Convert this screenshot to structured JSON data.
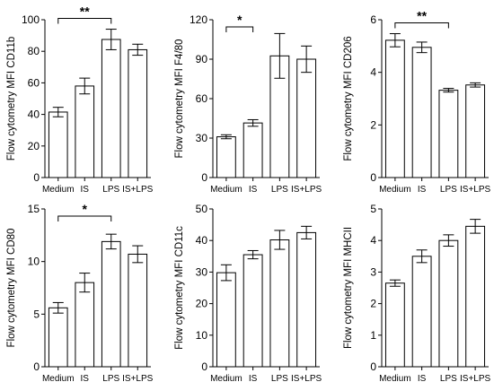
{
  "chart_data": [
    {
      "type": "bar",
      "ylabel": "Flow cytometry MFI CD11b",
      "categories": [
        "Medium",
        "IS",
        "LPS",
        "IS+LPS"
      ],
      "values": [
        41.5,
        58,
        87.5,
        81
      ],
      "errors": [
        3,
        5,
        6.5,
        3.5
      ],
      "ylim": [
        0,
        100
      ],
      "yticks": [
        "0",
        "20",
        "40",
        "60",
        "80",
        "100"
      ],
      "significance": [
        {
          "from": 0,
          "to": 2,
          "label": "**"
        }
      ]
    },
    {
      "type": "bar",
      "ylabel": "Flow cytometry MFI F4/80",
      "categories": [
        "Medium",
        "IS",
        "LPS",
        "IS+LPS"
      ],
      "values": [
        31,
        41.5,
        92.5,
        90
      ],
      "errors": [
        1.5,
        2.5,
        17,
        10
      ],
      "ylim": [
        0,
        120
      ],
      "yticks": [
        "0",
        "30",
        "60",
        "90",
        "120"
      ],
      "significance": [
        {
          "from": 0,
          "to": 1,
          "label": "*"
        }
      ]
    },
    {
      "type": "bar",
      "ylabel": "Flow cytometry MFI CD206",
      "categories": [
        "Medium",
        "IS",
        "LPS",
        "IS+LPS"
      ],
      "values": [
        5.22,
        4.95,
        3.32,
        3.52
      ],
      "errors": [
        0.25,
        0.2,
        0.07,
        0.08
      ],
      "ylim": [
        0,
        6
      ],
      "yticks": [
        "0",
        "2",
        "4",
        "6"
      ],
      "significance": [
        {
          "from": 0,
          "to": 2,
          "label": "**"
        }
      ]
    },
    {
      "type": "bar",
      "ylabel": "Flow cytometry MFI CD80",
      "categories": [
        "Medium",
        "IS",
        "LPS",
        "IS+LPS"
      ],
      "values": [
        5.6,
        8,
        11.9,
        10.7
      ],
      "errors": [
        0.5,
        0.9,
        0.7,
        0.8
      ],
      "ylim": [
        0,
        15
      ],
      "yticks": [
        "0",
        "5",
        "10",
        "15"
      ],
      "significance": [
        {
          "from": 0,
          "to": 2,
          "label": "*"
        }
      ]
    },
    {
      "type": "bar",
      "ylabel": "Flow cytometry MFI CD11c",
      "categories": [
        "Medium",
        "IS",
        "LPS",
        "IS+LPS"
      ],
      "values": [
        29.8,
        35.5,
        40.2,
        42.5
      ],
      "errors": [
        2.5,
        1.3,
        3,
        2
      ],
      "ylim": [
        0,
        50
      ],
      "yticks": [
        "0",
        "10",
        "20",
        "30",
        "40",
        "50"
      ],
      "significance": []
    },
    {
      "type": "bar",
      "ylabel": "Flow cytometry MFI MHCII",
      "categories": [
        "Medium",
        "IS",
        "LPS",
        "IS+LPS"
      ],
      "values": [
        2.65,
        3.5,
        4.0,
        4.45
      ],
      "errors": [
        0.1,
        0.2,
        0.18,
        0.22
      ],
      "ylim": [
        0,
        5
      ],
      "yticks": [
        "0",
        "1",
        "2",
        "3",
        "4",
        "5"
      ],
      "significance": []
    }
  ]
}
